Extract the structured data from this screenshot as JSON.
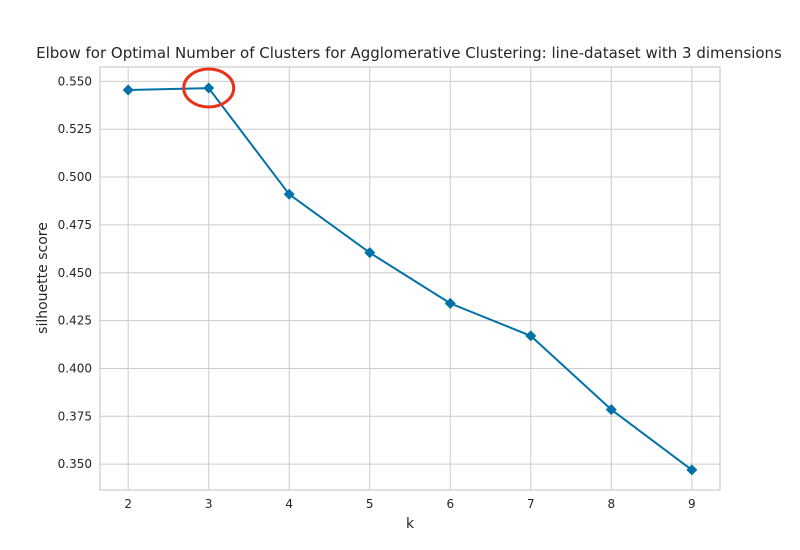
{
  "chart_data": {
    "type": "line",
    "title": "Elbow for Optimal Number of Clusters for Agglomerative Clustering: line-dataset with 3 dimensions",
    "xlabel": "k",
    "ylabel": "silhouette score",
    "x": [
      2,
      3,
      4,
      5,
      6,
      7,
      8,
      9
    ],
    "series": [
      {
        "values": [
          0.5455,
          0.5465,
          0.491,
          0.4605,
          0.434,
          0.417,
          0.3785,
          0.347
        ],
        "color": "#0072a8",
        "marker": "diamond"
      }
    ],
    "xticks": [
      "2",
      "3",
      "4",
      "5",
      "6",
      "7",
      "8",
      "9"
    ],
    "yticks": [
      "0.350",
      "0.375",
      "0.400",
      "0.425",
      "0.450",
      "0.475",
      "0.500",
      "0.525",
      "0.550"
    ],
    "xlim": [
      1.65,
      9.35
    ],
    "ylim": [
      0.3365,
      0.5575
    ],
    "grid": true,
    "highlight": {
      "x": 3,
      "y": 0.5465,
      "color": "#e8341c",
      "shape": "circle"
    }
  }
}
